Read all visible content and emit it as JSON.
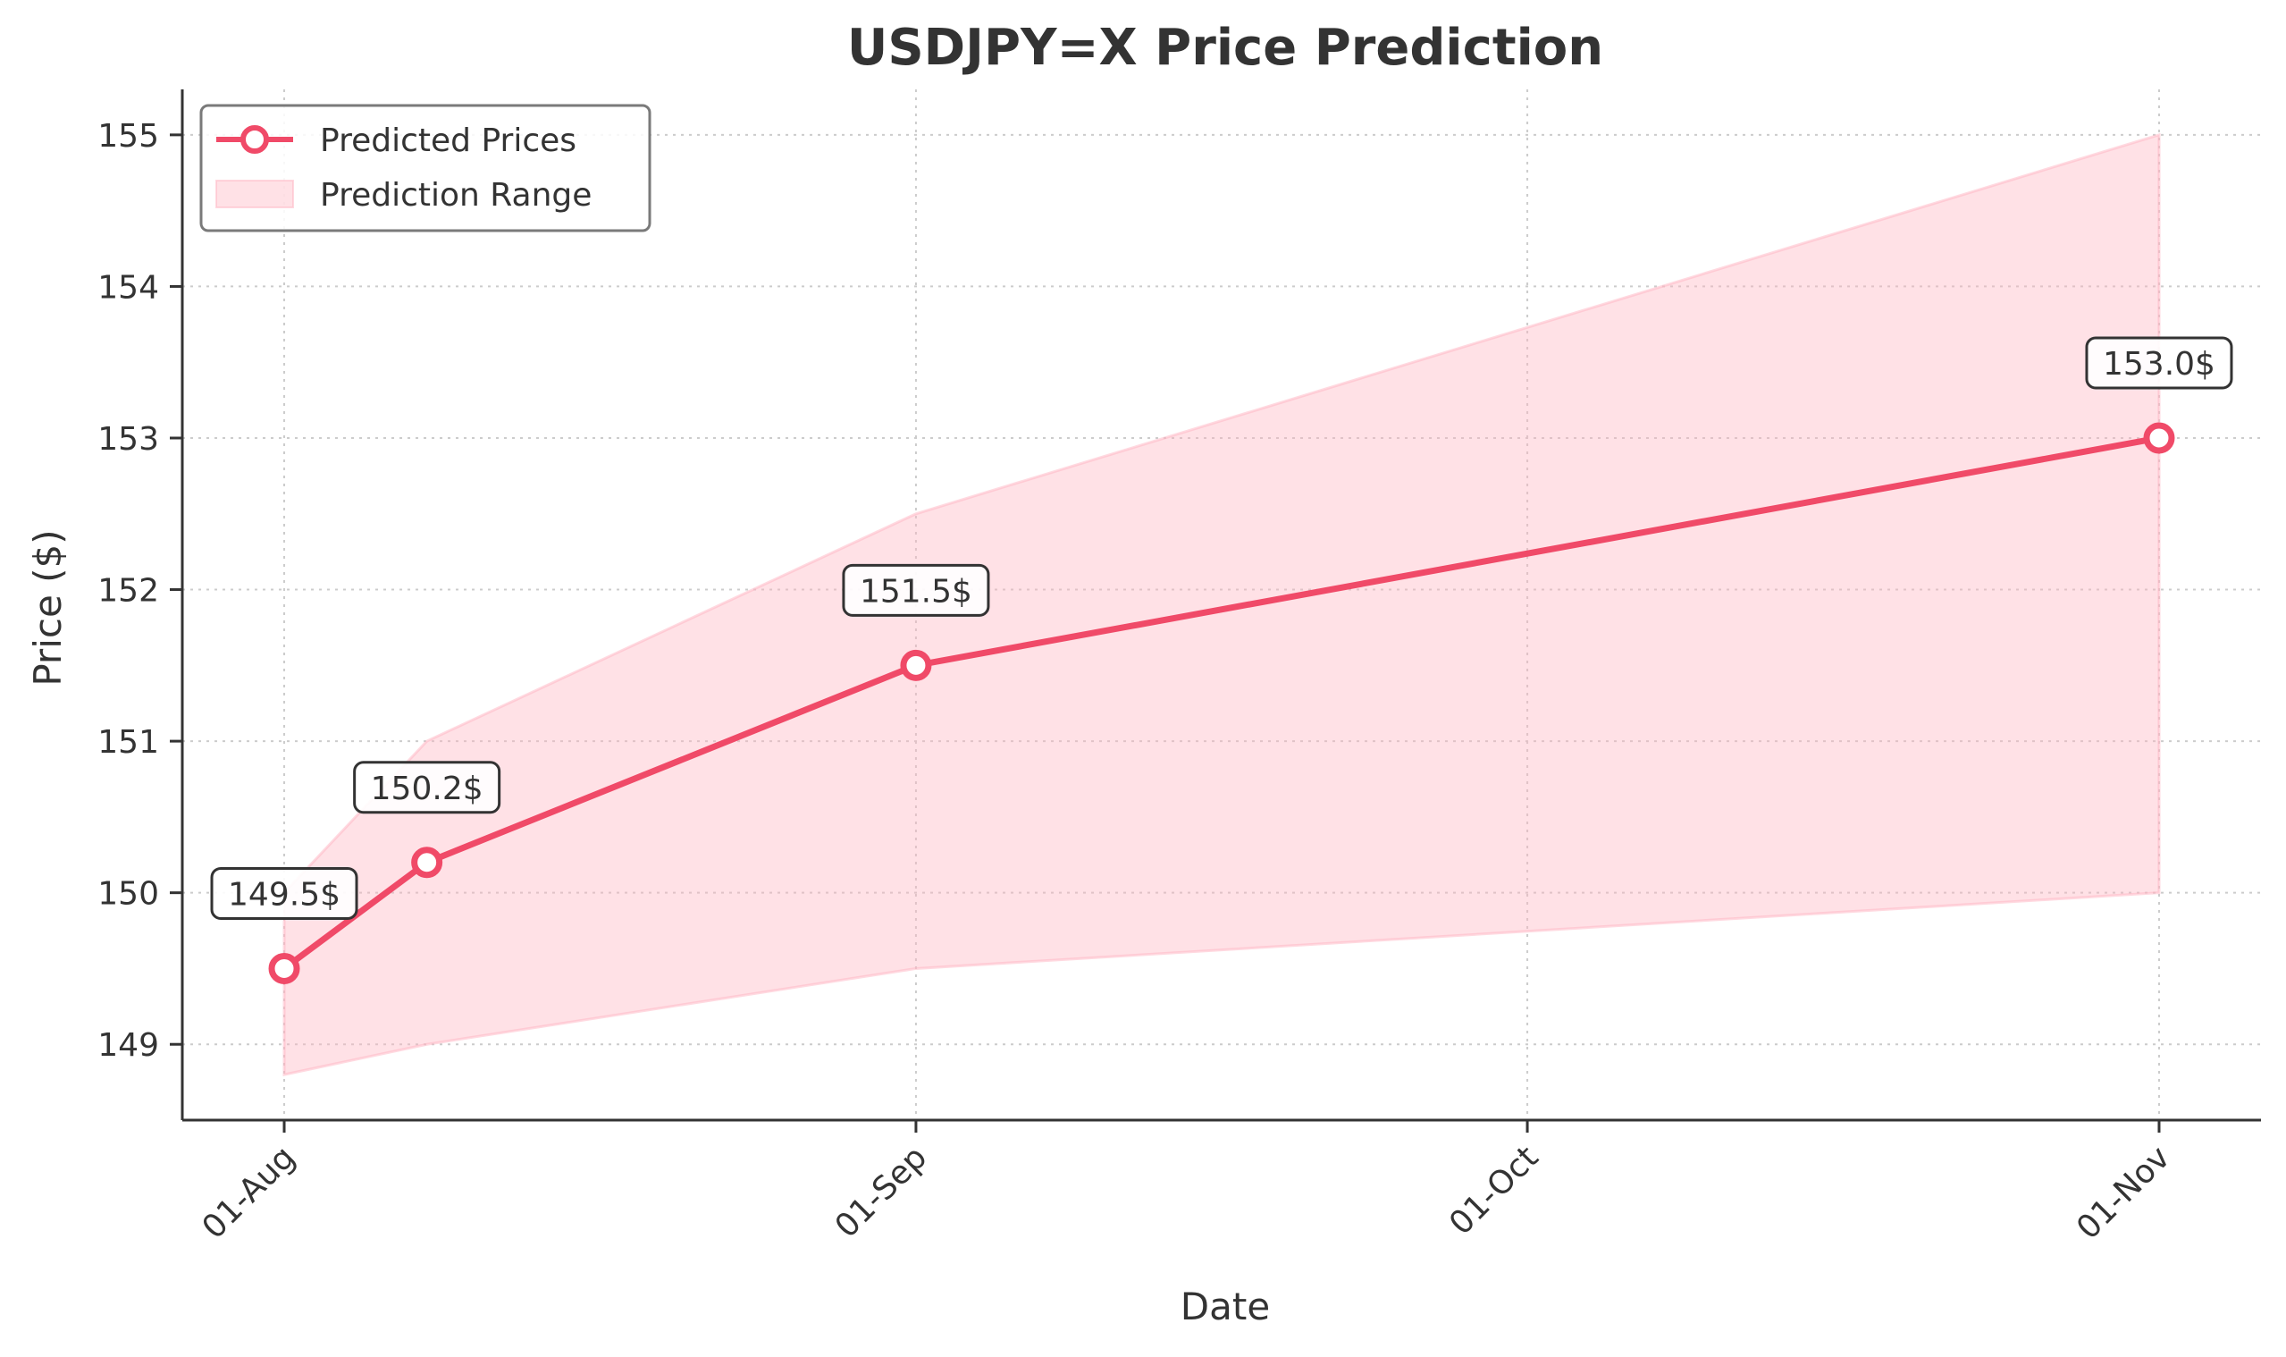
{
  "chart_data": {
    "type": "line",
    "title": "USDJPY=X Price Prediction",
    "xlabel": "Date",
    "ylabel": "Price ($)",
    "x": [
      "2024-08-01",
      "2024-08-08",
      "2024-09-01",
      "2024-11-01"
    ],
    "x_ticks": [
      {
        "date": "2024-08-01",
        "label": "01-Aug"
      },
      {
        "date": "2024-09-01",
        "label": "01-Sep"
      },
      {
        "date": "2024-10-01",
        "label": "01-Oct"
      },
      {
        "date": "2024-11-01",
        "label": "01-Nov"
      }
    ],
    "y_ticks": [
      149,
      150,
      151,
      152,
      153,
      154,
      155
    ],
    "ylim": [
      148.5,
      155.3
    ],
    "xlim": [
      "2024-07-27",
      "2024-11-06"
    ],
    "grid": true,
    "legend_position": "top-left",
    "series": [
      {
        "name": "Predicted Prices",
        "kind": "line",
        "color": "#f04a68",
        "values": [
          149.5,
          150.2,
          151.5,
          153.0
        ],
        "data_labels": [
          "149.5$",
          "150.2$",
          "151.5$",
          "153.0$"
        ]
      },
      {
        "name": "Prediction Range",
        "kind": "band",
        "color": "#ffb3c1",
        "lower": [
          148.8,
          149.0,
          149.5,
          150.0
        ],
        "upper": [
          150.0,
          151.0,
          152.5,
          155.0
        ]
      }
    ]
  }
}
